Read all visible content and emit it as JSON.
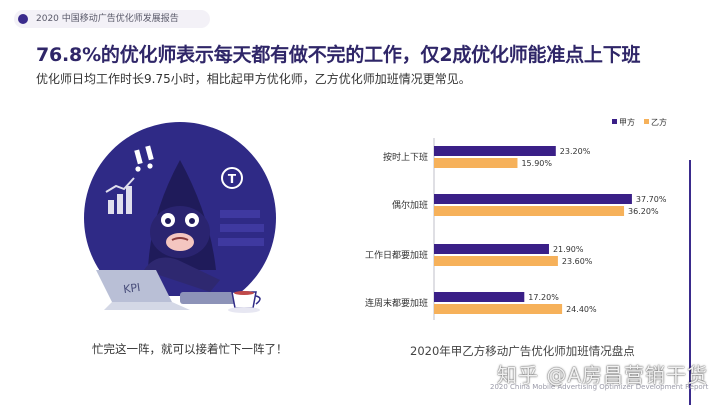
{
  "report": {
    "header_tag": "2020 中国移动广告优化师发展报告",
    "headline": "76.8%的优化师表示每天都有做不完的工作，仅2成优化师能准点上下班",
    "subheadline": "优化师日均工作时长9.75小时，相比起甲方优化师，乙方优化师加班情况更常见。",
    "illustration_caption": "忙完这一阵，就可以接着忙下一阵了！",
    "footer": "2020 China Mobile Advertising Optimizer Development Report",
    "watermark": "知乎 @A房昌营销干货",
    "illustration_label": "KPI"
  },
  "chart_data": {
    "type": "bar",
    "orientation": "horizontal",
    "title": "2020年甲乙方移动广告优化师加班情况盘点",
    "categories": [
      "按时上下班",
      "偶尔加班",
      "工作日都要加班",
      "连周末都要加班"
    ],
    "series": [
      {
        "name": "甲方",
        "color": "#3a1f87",
        "values": [
          23.2,
          37.7,
          21.9,
          17.2
        ],
        "labels": [
          "23.20%",
          "37.70%",
          "21.90%",
          "17.20%"
        ]
      },
      {
        "name": "乙方",
        "color": "#f6b15a",
        "values": [
          15.9,
          36.2,
          23.6,
          24.4
        ],
        "labels": [
          "15.90%",
          "36.20%",
          "23.60%",
          "24.40%"
        ]
      }
    ],
    "xlim": [
      0,
      40
    ],
    "legend_position": "top-right",
    "grid": false
  }
}
